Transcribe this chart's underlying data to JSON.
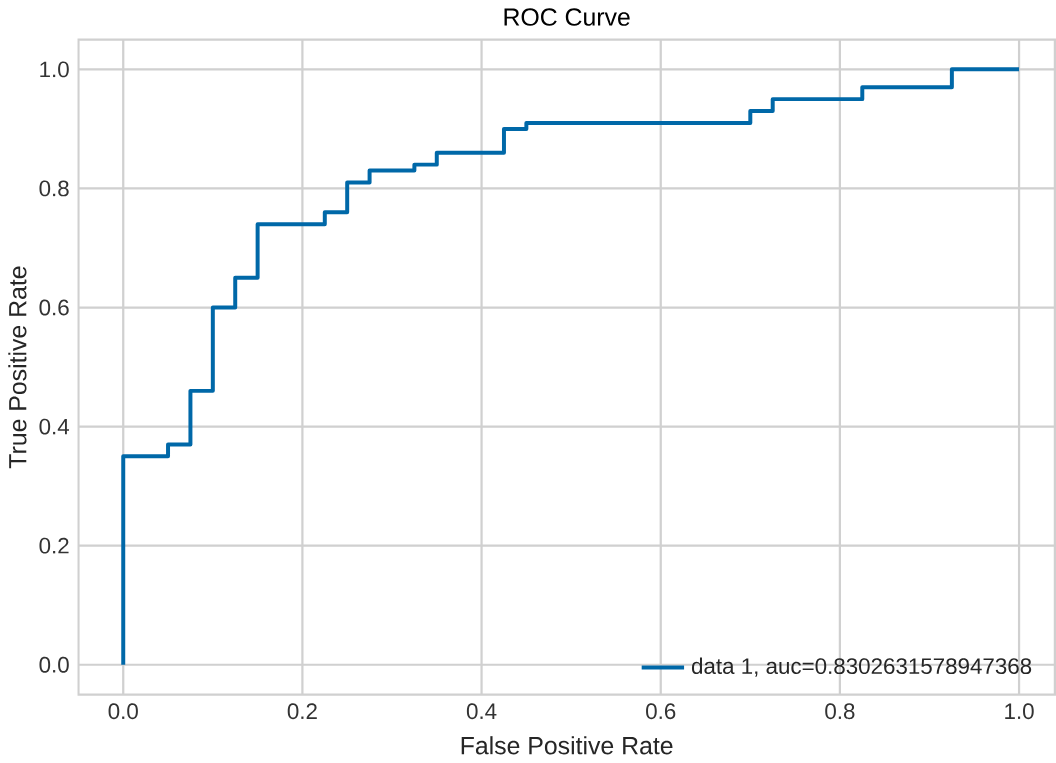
{
  "chart_data": {
    "type": "step",
    "title": "ROC Curve",
    "xlabel": "False Positive Rate",
    "ylabel": "True Positive Rate",
    "series": [
      {
        "name": "data 1, auc=0.8302631578947368",
        "color": "#0068a8",
        "x": [
          0,
          0,
          0.05,
          0.075,
          0.1,
          0.125,
          0.15,
          0.225,
          0.25,
          0.275,
          0.325,
          0.35,
          0.425,
          0.45,
          0.7,
          0.725,
          0.825,
          0.925,
          1.0
        ],
        "values": [
          0,
          0.35,
          0.37,
          0.46,
          0.6,
          0.65,
          0.74,
          0.76,
          0.81,
          0.83,
          0.84,
          0.86,
          0.9,
          0.91,
          0.93,
          0.95,
          0.97,
          1.0,
          1.0
        ]
      }
    ],
    "xlim": [
      -0.05,
      1.04
    ],
    "ylim": [
      -0.05,
      1.05
    ],
    "xticks": [
      {
        "value": 0,
        "label": "0.0"
      },
      0.2,
      0.4,
      0.6,
      0.8,
      {
        "value": 1,
        "label": "1.0"
      }
    ],
    "yticks": [
      {
        "value": 0,
        "label": "0.0"
      },
      0.2,
      0.4,
      0.6,
      0.8,
      {
        "value": 1,
        "label": "1.0"
      }
    ],
    "grid": true,
    "legend": "bottom right",
    "marker": "none",
    "line_style": "solid"
  }
}
